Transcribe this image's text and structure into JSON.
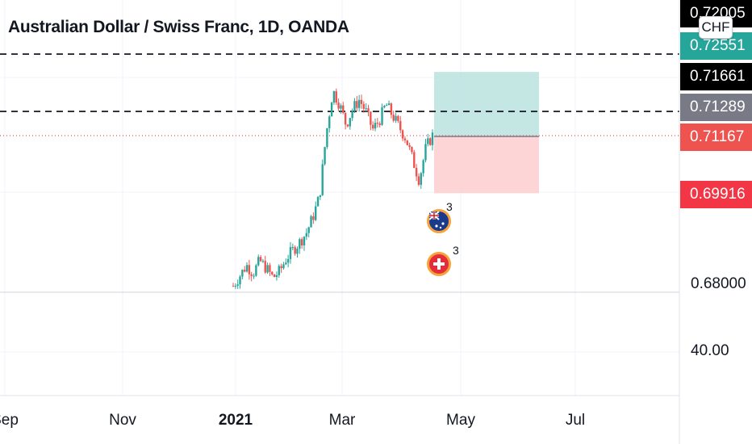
{
  "header": {
    "title": "Australian Dollar / Swiss Franc, 1D, OANDA",
    "currency_button": "CHF"
  },
  "price_tags": [
    {
      "label": "0.72005",
      "bg": "#000000"
    },
    {
      "label": "0.72551",
      "bg": "#26a69a"
    },
    {
      "label": "0.71661",
      "bg": "#000000"
    },
    {
      "label": "0.71289",
      "bg": "#787b86"
    },
    {
      "label": "0.71167",
      "bg": "#ef5350"
    },
    {
      "label": "0.69916",
      "bg": "#f23645"
    }
  ],
  "axis_labels": {
    "price_low": "0.68000",
    "volume_level": "40.00"
  },
  "events": [
    {
      "flag": "australia-flag-icon",
      "count": "3"
    },
    {
      "flag": "switzerland-flag-icon",
      "count": "3"
    }
  ],
  "chart_data": {
    "type": "candlestick",
    "title": "Australian Dollar / Swiss Franc, 1D, OANDA",
    "x_ticks": [
      "Sep",
      "Nov",
      "2021",
      "Mar",
      "May",
      "Jul"
    ],
    "y_ticks": [
      "0.68000"
    ],
    "colors": {
      "up": "#26a69a",
      "down": "#ef5350",
      "profit_zone": "#b2dfdb",
      "loss_zone": "#fccbcd"
    },
    "levels": {
      "dashed_upper": 0.71661,
      "dashed_middle": 0.71289,
      "current_price": 0.71167
    },
    "position": {
      "entry": 0.71167,
      "take_profit": 0.72551,
      "stop_loss": 0.69916
    },
    "trend_closes": [
      0.679,
      0.6812,
      0.6835,
      0.6818,
      0.6845,
      0.6828,
      0.6808,
      0.6822,
      0.685,
      0.6868,
      0.6885,
      0.6905,
      0.694,
      0.6985,
      0.712,
      0.7215,
      0.7185,
      0.714,
      0.7175,
      0.7195,
      0.7168,
      0.713,
      0.715,
      0.7185,
      0.716,
      0.7135,
      0.711,
      0.7065,
      0.702,
      0.709,
      0.7117
    ]
  }
}
